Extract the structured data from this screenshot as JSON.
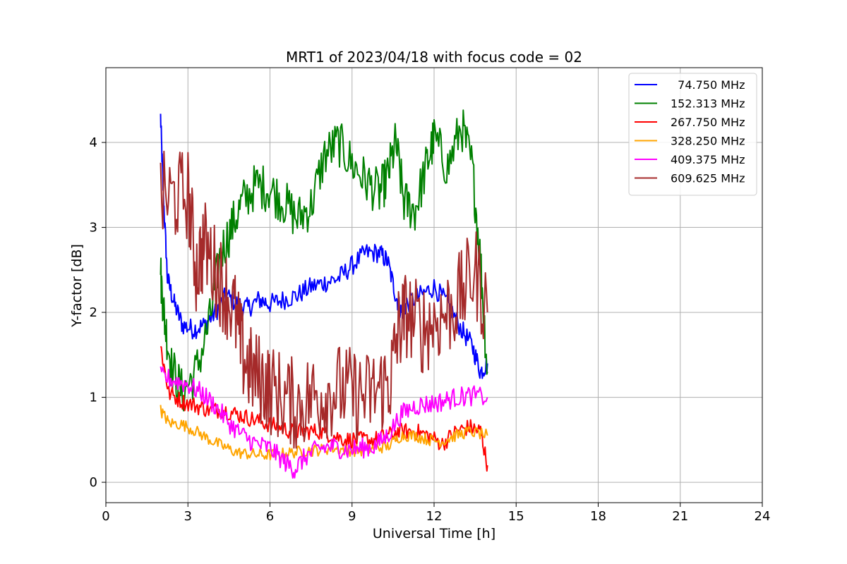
{
  "chart_data": {
    "type": "line",
    "title": "MRT1 of 2023/04/18 with focus code = 02",
    "xlabel": "Universal Time [h]",
    "ylabel": "Y-factor [dB]",
    "xlim": [
      0,
      24
    ],
    "ylim": [
      -0.24,
      4.88
    ],
    "xticks": [
      "0",
      "3",
      "6",
      "9",
      "12",
      "15",
      "18",
      "21",
      "24"
    ],
    "yticks": [
      "0",
      "1",
      "2",
      "3",
      "4"
    ],
    "grid": true,
    "legend_position": "top-right",
    "series": [
      {
        "name": "  74.750 MHz",
        "color": "#0000ff",
        "points": [
          [
            2.0,
            4.3
          ],
          [
            2.1,
            3.4
          ],
          [
            2.25,
            2.4
          ],
          [
            2.5,
            2.1
          ],
          [
            2.8,
            1.85
          ],
          [
            3.2,
            1.8
          ],
          [
            3.6,
            1.85
          ],
          [
            4.0,
            2.0
          ],
          [
            4.4,
            2.2
          ],
          [
            4.8,
            2.1
          ],
          [
            5.2,
            2.05
          ],
          [
            5.6,
            2.15
          ],
          [
            6.0,
            2.1
          ],
          [
            6.5,
            2.15
          ],
          [
            7.0,
            2.2
          ],
          [
            7.5,
            2.3
          ],
          [
            8.0,
            2.35
          ],
          [
            8.5,
            2.4
          ],
          [
            9.0,
            2.55
          ],
          [
            9.5,
            2.7
          ],
          [
            10.0,
            2.7
          ],
          [
            10.3,
            2.6
          ],
          [
            10.6,
            2.2
          ],
          [
            10.8,
            2.0
          ],
          [
            11.0,
            2.1
          ],
          [
            11.5,
            2.2
          ],
          [
            12.0,
            2.3
          ],
          [
            12.5,
            2.1
          ],
          [
            13.0,
            1.8
          ],
          [
            13.4,
            1.6
          ],
          [
            13.7,
            1.3
          ],
          [
            13.95,
            1.4
          ]
        ]
      },
      {
        "name": "152.313 MHz",
        "color": "#008000",
        "points": [
          [
            2.0,
            2.45
          ],
          [
            2.15,
            1.9
          ],
          [
            2.4,
            1.35
          ],
          [
            2.8,
            1.05
          ],
          [
            3.3,
            1.3
          ],
          [
            3.8,
            1.9
          ],
          [
            4.2,
            2.7
          ],
          [
            4.6,
            3.0
          ],
          [
            5.0,
            3.3
          ],
          [
            5.5,
            3.5
          ],
          [
            6.0,
            3.45
          ],
          [
            6.5,
            3.3
          ],
          [
            7.0,
            3.1
          ],
          [
            7.5,
            3.25
          ],
          [
            8.0,
            3.85
          ],
          [
            8.5,
            4.0
          ],
          [
            9.0,
            3.75
          ],
          [
            9.5,
            3.55
          ],
          [
            10.0,
            3.4
          ],
          [
            10.3,
            3.6
          ],
          [
            10.6,
            4.0
          ],
          [
            10.9,
            3.3
          ],
          [
            11.3,
            3.2
          ],
          [
            11.7,
            3.7
          ],
          [
            12.0,
            4.05
          ],
          [
            12.5,
            3.7
          ],
          [
            13.0,
            4.2
          ],
          [
            13.4,
            3.7
          ],
          [
            13.7,
            2.6
          ],
          [
            13.95,
            1.3
          ]
        ]
      },
      {
        "name": "267.750 MHz",
        "color": "#ff0000",
        "points": [
          [
            2.0,
            1.6
          ],
          [
            2.3,
            1.05
          ],
          [
            2.8,
            0.95
          ],
          [
            3.3,
            0.9
          ],
          [
            3.8,
            0.85
          ],
          [
            4.3,
            0.85
          ],
          [
            4.8,
            0.8
          ],
          [
            5.3,
            0.75
          ],
          [
            5.8,
            0.7
          ],
          [
            6.3,
            0.65
          ],
          [
            6.8,
            0.6
          ],
          [
            7.3,
            0.6
          ],
          [
            7.8,
            0.6
          ],
          [
            8.3,
            0.55
          ],
          [
            8.8,
            0.5
          ],
          [
            9.3,
            0.5
          ],
          [
            9.8,
            0.5
          ],
          [
            10.3,
            0.55
          ],
          [
            10.8,
            0.6
          ],
          [
            11.3,
            0.6
          ],
          [
            11.8,
            0.55
          ],
          [
            12.3,
            0.45
          ],
          [
            12.8,
            0.6
          ],
          [
            13.3,
            0.65
          ],
          [
            13.7,
            0.6
          ],
          [
            13.95,
            0.2
          ]
        ]
      },
      {
        "name": "328.250 MHz",
        "color": "#ffa500",
        "points": [
          [
            2.0,
            0.85
          ],
          [
            2.3,
            0.7
          ],
          [
            2.8,
            0.68
          ],
          [
            3.3,
            0.6
          ],
          [
            3.8,
            0.5
          ],
          [
            4.3,
            0.42
          ],
          [
            4.8,
            0.35
          ],
          [
            5.3,
            0.33
          ],
          [
            5.8,
            0.32
          ],
          [
            6.3,
            0.33
          ],
          [
            6.8,
            0.35
          ],
          [
            7.3,
            0.37
          ],
          [
            7.8,
            0.38
          ],
          [
            8.3,
            0.4
          ],
          [
            8.8,
            0.38
          ],
          [
            9.3,
            0.37
          ],
          [
            9.8,
            0.4
          ],
          [
            10.3,
            0.42
          ],
          [
            10.8,
            0.55
          ],
          [
            11.3,
            0.55
          ],
          [
            11.8,
            0.5
          ],
          [
            12.3,
            0.48
          ],
          [
            12.8,
            0.55
          ],
          [
            13.3,
            0.6
          ],
          [
            13.95,
            0.55
          ]
        ]
      },
      {
        "name": "409.375 MHz",
        "color": "#ff00ff",
        "points": [
          [
            2.0,
            1.25
          ],
          [
            2.5,
            1.2
          ],
          [
            3.0,
            1.15
          ],
          [
            3.5,
            1.05
          ],
          [
            4.0,
            0.9
          ],
          [
            4.5,
            0.7
          ],
          [
            5.0,
            0.55
          ],
          [
            5.5,
            0.45
          ],
          [
            6.0,
            0.4
          ],
          [
            6.5,
            0.25
          ],
          [
            6.9,
            0.15
          ],
          [
            7.3,
            0.3
          ],
          [
            7.8,
            0.4
          ],
          [
            8.3,
            0.42
          ],
          [
            8.8,
            0.38
          ],
          [
            9.3,
            0.4
          ],
          [
            9.8,
            0.42
          ],
          [
            10.3,
            0.55
          ],
          [
            10.8,
            0.8
          ],
          [
            11.3,
            0.9
          ],
          [
            11.8,
            0.92
          ],
          [
            12.3,
            0.95
          ],
          [
            12.8,
            1.0
          ],
          [
            13.3,
            1.02
          ],
          [
            13.95,
            1.0
          ]
        ]
      },
      {
        "name": "609.625 MHz",
        "color": "#a52a2a",
        "points": [
          [
            2.0,
            3.35
          ],
          [
            2.5,
            3.35
          ],
          [
            3.0,
            3.4
          ],
          [
            3.3,
            2.5
          ],
          [
            3.6,
            2.8
          ],
          [
            4.0,
            2.5
          ],
          [
            4.3,
            2.3
          ],
          [
            4.7,
            2.0
          ],
          [
            5.0,
            1.5
          ],
          [
            5.3,
            1.3
          ],
          [
            5.7,
            1.2
          ],
          [
            6.0,
            1.1
          ],
          [
            6.5,
            1.0
          ],
          [
            7.0,
            0.9
          ],
          [
            7.5,
            1.0
          ],
          [
            8.0,
            1.05
          ],
          [
            8.5,
            1.1
          ],
          [
            9.0,
            1.05
          ],
          [
            9.5,
            1.0
          ],
          [
            10.0,
            1.1
          ],
          [
            10.4,
            1.2
          ],
          [
            10.7,
            1.8
          ],
          [
            11.0,
            2.0
          ],
          [
            11.5,
            1.8
          ],
          [
            12.0,
            1.9
          ],
          [
            12.5,
            2.0
          ],
          [
            13.0,
            2.2
          ],
          [
            13.5,
            2.5
          ],
          [
            13.95,
            2.0
          ]
        ]
      }
    ]
  }
}
